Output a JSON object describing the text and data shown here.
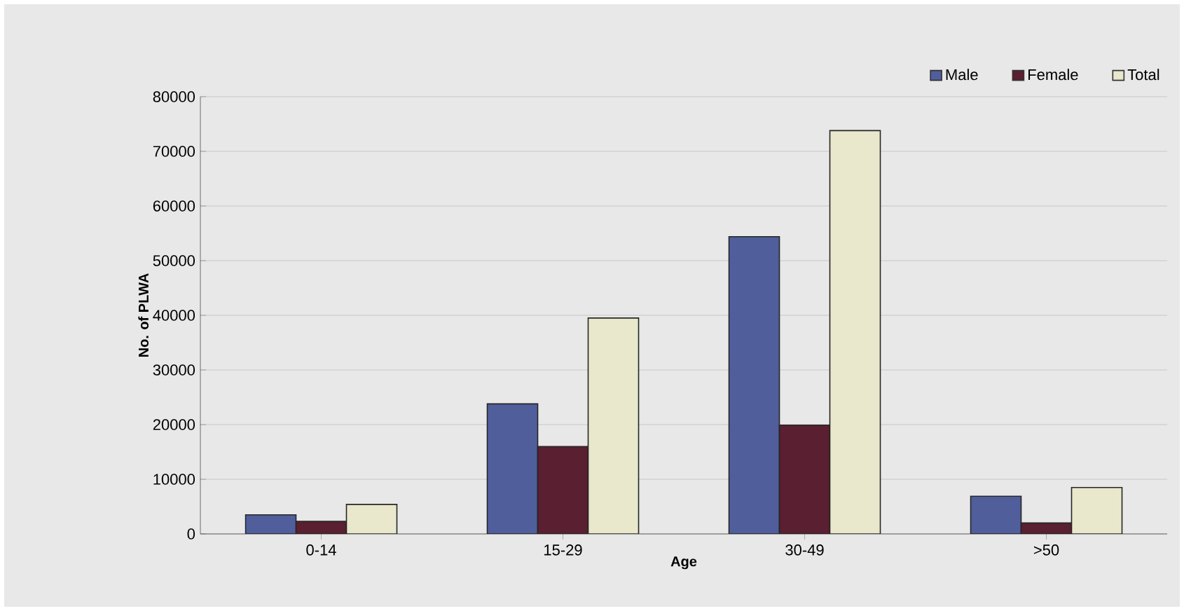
{
  "chart_data": {
    "type": "bar",
    "xlabel": "Age",
    "ylabel": "No. of PLWA",
    "categories": [
      "0-14",
      "15-29",
      "30-49",
      ">50"
    ],
    "series": [
      {
        "name": "Male",
        "color": "#505e9c",
        "values": [
          3500,
          23800,
          54400,
          6900
        ]
      },
      {
        "name": "Female",
        "color": "#5a1f30",
        "values": [
          2300,
          16000,
          19900,
          2000
        ]
      },
      {
        "name": "Total",
        "color": "#e9e7cc",
        "values": [
          5400,
          39500,
          73800,
          8500
        ]
      }
    ],
    "ylim": [
      0,
      80000
    ],
    "yticks": [
      0,
      10000,
      20000,
      30000,
      40000,
      50000,
      60000,
      70000,
      80000
    ],
    "grid": "y",
    "legend": "top right"
  }
}
